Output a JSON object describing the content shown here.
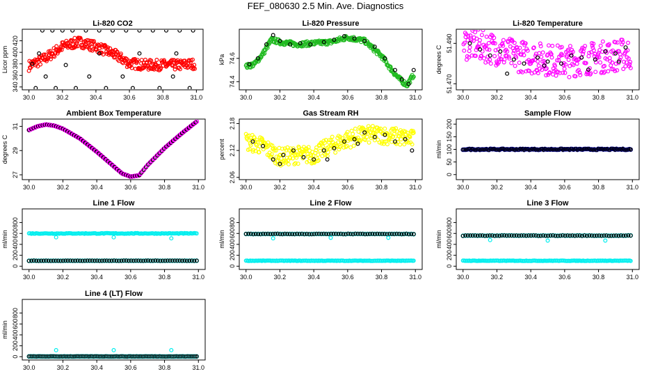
{
  "figure": {
    "title": "FEF_080630  2.5 Min. Ave. Diagnostics"
  },
  "colors": {
    "black": "#000000",
    "red": "#ff0000",
    "green": "#22bb22",
    "magenta": "#ff00ff",
    "yellow": "#ffff00",
    "blue": "#0000cc",
    "cyan": "#00eeee"
  },
  "chart_data": [
    {
      "id": "co2",
      "type": "scatter",
      "title": "Li-820 CO2",
      "ylabel": "Licor ppm",
      "xlim": [
        30.0,
        31.0
      ],
      "ylim": [
        335,
        440
      ],
      "xticks": [
        30.0,
        30.2,
        30.4,
        30.6,
        30.8,
        31.0
      ],
      "yticks": [
        340,
        360,
        380,
        400,
        420
      ],
      "series": [
        {
          "color": "#ff0000",
          "kind": "dense",
          "curve": [
            [
              30.0,
              377
            ],
            [
              30.1,
              390
            ],
            [
              30.2,
              410
            ],
            [
              30.3,
              418
            ],
            [
              30.4,
              410
            ],
            [
              30.5,
              398
            ],
            [
              30.6,
              381
            ],
            [
              30.7,
              378
            ],
            [
              30.8,
              378
            ],
            [
              30.9,
              378
            ],
            [
              30.99,
              380
            ]
          ],
          "scatter": 9
        },
        {
          "color": "#000000",
          "kind": "points",
          "x": [
            30.02,
            30.08,
            30.14,
            30.2,
            30.26,
            30.34,
            30.42,
            30.5,
            30.58,
            30.66,
            30.74,
            30.82,
            30.9,
            30.98,
            30.04,
            30.16,
            30.28,
            30.46,
            30.62,
            30.78,
            30.96,
            30.1,
            30.36,
            30.56,
            30.86,
            30.06,
            30.22,
            30.42,
            30.66,
            30.88
          ],
          "y": [
            380,
            438,
            438,
            438,
            438,
            438,
            438,
            438,
            438,
            438,
            438,
            438,
            438,
            438,
            338,
            338,
            338,
            338,
            338,
            338,
            338,
            358,
            358,
            358,
            358,
            398,
            378,
            398,
            398,
            398
          ]
        }
      ]
    },
    {
      "id": "pressure",
      "type": "scatter",
      "title": "Li-820 Pressure",
      "ylabel": "kPa",
      "xlim": [
        30.0,
        31.0
      ],
      "ylim": [
        74.33,
        74.85
      ],
      "xticks": [
        30.0,
        30.2,
        30.4,
        30.6,
        30.8,
        31.0
      ],
      "yticks": [
        74.4,
        74.6
      ],
      "series": [
        {
          "color": "#22bb22",
          "kind": "dense",
          "curve": [
            [
              30.0,
              74.53
            ],
            [
              30.05,
              74.55
            ],
            [
              30.1,
              74.64
            ],
            [
              30.15,
              74.76
            ],
            [
              30.2,
              74.74
            ],
            [
              30.3,
              74.72
            ],
            [
              30.4,
              74.73
            ],
            [
              30.5,
              74.74
            ],
            [
              30.55,
              74.76
            ],
            [
              30.6,
              74.78
            ],
            [
              30.7,
              74.75
            ],
            [
              30.8,
              74.62
            ],
            [
              30.85,
              74.52
            ],
            [
              30.9,
              74.43
            ],
            [
              30.95,
              74.37
            ],
            [
              30.99,
              74.46
            ]
          ],
          "scatter": 0.02
        },
        {
          "color": "#000000",
          "kind": "points",
          "x": [
            30.02,
            30.07,
            30.12,
            30.16,
            30.2,
            30.26,
            30.32,
            30.38,
            30.46,
            30.52,
            30.58,
            30.64,
            30.7,
            30.76,
            30.82,
            30.88,
            30.92,
            30.96,
            30.99
          ],
          "y": [
            74.55,
            74.6,
            74.72,
            74.8,
            74.75,
            74.72,
            74.73,
            74.72,
            74.74,
            74.76,
            74.79,
            74.77,
            74.75,
            74.7,
            74.6,
            74.5,
            74.42,
            74.38,
            74.5
          ]
        }
      ]
    },
    {
      "id": "licor-temp",
      "type": "scatter",
      "title": "Li-820 Temperature",
      "ylabel": "degrees C",
      "xlim": [
        30.0,
        31.0
      ],
      "ylim": [
        51.467,
        51.497
      ],
      "xticks": [
        30.0,
        30.2,
        30.4,
        30.6,
        30.8,
        31.0
      ],
      "yticks": [
        51.47,
        51.49
      ],
      "ytick_labels": [
        "51.470",
        "51.490"
      ],
      "series": [
        {
          "color": "#ff00ff",
          "kind": "dense",
          "curve": [
            [
              30.0,
              51.49
            ],
            [
              30.1,
              51.489
            ],
            [
              30.2,
              51.487
            ],
            [
              30.3,
              51.484
            ],
            [
              30.4,
              51.483
            ],
            [
              30.5,
              51.482
            ],
            [
              30.6,
              51.481
            ],
            [
              30.7,
              51.482
            ],
            [
              30.8,
              51.483
            ],
            [
              30.9,
              51.484
            ],
            [
              30.99,
              51.485
            ]
          ],
          "scatter": 0.008
        },
        {
          "color": "#000000",
          "kind": "points",
          "x": [
            30.04,
            30.1,
            30.16,
            30.22,
            30.3,
            30.36,
            30.44,
            30.5,
            30.58,
            30.64,
            30.7,
            30.78,
            30.84,
            30.9,
            30.96,
            30.26,
            30.48,
            30.74,
            30.92
          ],
          "y": [
            51.49,
            51.487,
            51.484,
            51.486,
            51.482,
            51.48,
            51.483,
            51.481,
            51.48,
            51.484,
            51.483,
            51.482,
            51.486,
            51.485,
            51.488,
            51.475,
            51.479,
            51.477,
            51.481
          ]
        }
      ]
    },
    {
      "id": "box-temp",
      "type": "scatter",
      "title": "Ambient Box Temperature",
      "ylabel": "degrees C",
      "xlim": [
        30.0,
        31.0
      ],
      "ylim": [
        26.6,
        31.6
      ],
      "xticks": [
        30.0,
        30.2,
        30.4,
        30.6,
        30.8,
        31.0
      ],
      "yticks": [
        27,
        29,
        31
      ],
      "series": [
        {
          "color": "#000000",
          "kind": "curve-points",
          "edge": "#ff00ff",
          "curve": [
            [
              30.0,
              30.7
            ],
            [
              30.05,
              31.0
            ],
            [
              30.1,
              31.15
            ],
            [
              30.15,
              31.05
            ],
            [
              30.2,
              30.8
            ],
            [
              30.3,
              30.0
            ],
            [
              30.4,
              28.9
            ],
            [
              30.5,
              27.7
            ],
            [
              30.55,
              27.1
            ],
            [
              30.6,
              26.85
            ],
            [
              30.65,
              26.95
            ],
            [
              30.7,
              27.8
            ],
            [
              30.8,
              29.2
            ],
            [
              30.9,
              30.4
            ],
            [
              30.99,
              31.4
            ]
          ],
          "count": 150
        }
      ]
    },
    {
      "id": "rh",
      "type": "scatter",
      "title": "Gas Stream RH",
      "ylabel": "percent",
      "xlim": [
        30.0,
        31.0
      ],
      "ylim": [
        2.055,
        2.19
      ],
      "xticks": [
        30.0,
        30.2,
        30.4,
        30.6,
        30.8,
        31.0
      ],
      "yticks": [
        2.06,
        2.12,
        2.18
      ],
      "series": [
        {
          "color": "#ffff00",
          "kind": "dense",
          "curve": [
            [
              30.0,
              2.14
            ],
            [
              30.1,
              2.13
            ],
            [
              30.2,
              2.105
            ],
            [
              30.3,
              2.11
            ],
            [
              30.4,
              2.11
            ],
            [
              30.5,
              2.13
            ],
            [
              30.6,
              2.145
            ],
            [
              30.7,
              2.155
            ],
            [
              30.8,
              2.155
            ],
            [
              30.9,
              2.15
            ],
            [
              30.99,
              2.145
            ]
          ],
          "scatter": 0.02
        },
        {
          "color": "#000000",
          "kind": "points",
          "x": [
            30.04,
            30.1,
            30.16,
            30.22,
            30.28,
            30.34,
            30.4,
            30.46,
            30.52,
            30.58,
            30.64,
            30.7,
            30.76,
            30.82,
            30.88,
            30.94,
            30.98,
            30.2,
            30.48,
            30.66
          ],
          "y": [
            2.14,
            2.13,
            2.1,
            2.11,
            2.12,
            2.105,
            2.1,
            2.12,
            2.125,
            2.14,
            2.145,
            2.16,
            2.15,
            2.155,
            2.14,
            2.145,
            2.12,
            2.09,
            2.1,
            2.135
          ]
        }
      ]
    },
    {
      "id": "sample-flow",
      "type": "scatter",
      "title": "Sample Flow",
      "ylabel": "ml/min",
      "xlim": [
        30.0,
        31.0
      ],
      "ylim": [
        -20,
        220
      ],
      "xticks": [
        30.0,
        30.2,
        30.4,
        30.6,
        30.8,
        31.0
      ],
      "yticks": [
        0,
        50,
        100,
        150,
        200
      ],
      "series": [
        {
          "color": "#000000",
          "kind": "flat",
          "edge": "#0000cc",
          "y": 100,
          "count": 130,
          "jitter": 2
        }
      ]
    },
    {
      "id": "line1",
      "type": "scatter",
      "title": "Line 1 Flow",
      "ylabel": "ml/min",
      "xlim": [
        30.0,
        31.0
      ],
      "ylim": [
        -60,
        1050
      ],
      "xticks": [
        30.0,
        30.2,
        30.4,
        30.6,
        30.8,
        31.0
      ],
      "yticks": [
        0,
        200,
        400,
        600,
        800
      ],
      "series": [
        {
          "color": "#00eeee",
          "kind": "flat",
          "y": 600,
          "count": 140,
          "jitter": 6,
          "outliers": [
            [
              30.16,
              530
            ],
            [
              30.5,
              530
            ],
            [
              30.84,
              510
            ]
          ]
        },
        {
          "color": "#000000",
          "kind": "flat",
          "edge": "#00eeee",
          "y": 100,
          "count": 70,
          "jitter": 2
        }
      ]
    },
    {
      "id": "line2",
      "type": "scatter",
      "title": "Line 2 Flow",
      "ylabel": "ml/min",
      "xlim": [
        30.0,
        31.0
      ],
      "ylim": [
        -60,
        1050
      ],
      "xticks": [
        30.0,
        30.2,
        30.4,
        30.6,
        30.8,
        31.0
      ],
      "yticks": [
        0,
        200,
        400,
        600,
        800
      ],
      "series": [
        {
          "color": "#000000",
          "kind": "flat",
          "edge": "#00eeee",
          "y": 590,
          "count": 70,
          "jitter": 3,
          "outliers": [
            [
              30.16,
              510
            ],
            [
              30.5,
              520
            ],
            [
              30.84,
              520
            ]
          ]
        },
        {
          "color": "#00eeee",
          "kind": "flat",
          "y": 100,
          "count": 160,
          "jitter": 4
        }
      ]
    },
    {
      "id": "line3",
      "type": "scatter",
      "title": "Line 3 Flow",
      "ylabel": "ml/min",
      "xlim": [
        30.0,
        31.0
      ],
      "ylim": [
        -60,
        1050
      ],
      "xticks": [
        30.0,
        30.2,
        30.4,
        30.6,
        30.8,
        31.0
      ],
      "yticks": [
        0,
        200,
        400,
        600,
        800
      ],
      "series": [
        {
          "color": "#000000",
          "kind": "flat",
          "edge": "#00eeee",
          "y": 560,
          "count": 70,
          "jitter": 4,
          "outliers": [
            [
              30.16,
              480
            ],
            [
              30.5,
              470
            ],
            [
              30.84,
              470
            ]
          ]
        },
        {
          "color": "#00eeee",
          "kind": "flat",
          "y": 100,
          "count": 160,
          "jitter": 4
        }
      ]
    },
    {
      "id": "line4",
      "type": "scatter",
      "title": "Line 4 (LT) Flow",
      "ylabel": "ml/min",
      "xlim": [
        30.0,
        31.0
      ],
      "ylim": [
        -60,
        1050
      ],
      "xticks": [
        30.0,
        30.2,
        30.4,
        30.6,
        30.8,
        31.0
      ],
      "yticks": [
        0,
        200,
        400,
        600,
        800
      ],
      "series": [
        {
          "color": "#000000",
          "kind": "flat",
          "edge": "#00eeee",
          "y": 5,
          "count": 110,
          "jitter": 2,
          "outliers": [
            [
              30.16,
              120
            ],
            [
              30.5,
              120
            ],
            [
              30.84,
              120
            ]
          ]
        }
      ]
    }
  ]
}
